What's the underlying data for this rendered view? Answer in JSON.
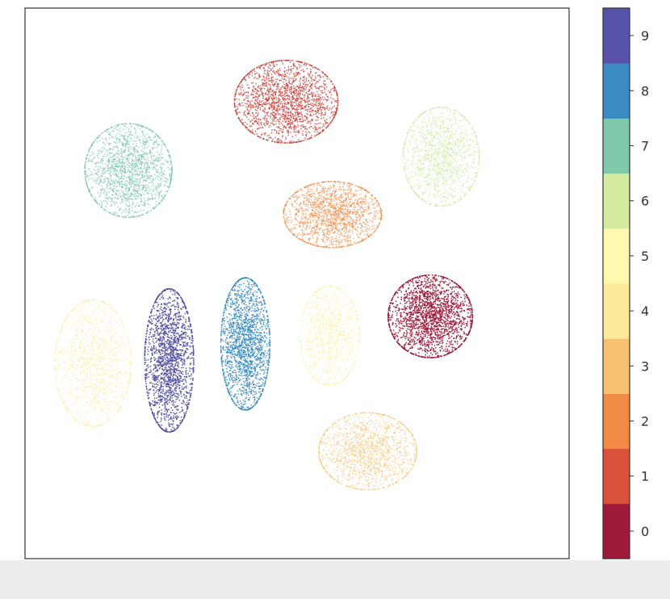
{
  "chart_data": {
    "type": "scatter",
    "title": "",
    "xlabel": "",
    "ylabel": "",
    "xlim": [
      -10,
      10
    ],
    "ylim": [
      -10,
      10
    ],
    "axes_ticks_visible": false,
    "grid": false,
    "legend": "colorbar-right",
    "colorbar": {
      "colormap": "Spectral",
      "ticks": [
        "0",
        "1",
        "2",
        "3",
        "4",
        "5",
        "6",
        "7",
        "8",
        "9"
      ],
      "colors": [
        "#9e1a3a",
        "#d9513a",
        "#f08a45",
        "#f6c272",
        "#fde99a",
        "#fef8b0",
        "#d5eca0",
        "#7fc8a9",
        "#3b8bc2",
        "#5753a8"
      ]
    },
    "clusters": [
      {
        "label": "0",
        "center": [
          4.9,
          -1.2
        ],
        "spread": [
          1.55,
          1.5
        ],
        "count": 2000,
        "color": "#9e1a3a",
        "opacity": 0.9
      },
      {
        "label": "1",
        "center": [
          -0.4,
          6.6
        ],
        "spread": [
          1.9,
          1.5
        ],
        "count": 1900,
        "color": "#c9403a",
        "opacity": 0.75
      },
      {
        "label": "2",
        "center": [
          1.3,
          2.5
        ],
        "spread": [
          1.8,
          1.2
        ],
        "count": 1700,
        "color": "#f08a45",
        "opacity": 0.6
      },
      {
        "label": "3",
        "center": [
          2.6,
          -6.1
        ],
        "spread": [
          1.8,
          1.4
        ],
        "count": 1500,
        "color": "#f6c272",
        "opacity": 0.55
      },
      {
        "label": "4",
        "center": [
          -7.5,
          -2.9
        ],
        "spread": [
          1.4,
          2.3
        ],
        "count": 1400,
        "color": "#fde99a",
        "opacity": 0.5
      },
      {
        "label": "5",
        "center": [
          1.2,
          -1.9
        ],
        "spread": [
          1.1,
          1.8
        ],
        "count": 1100,
        "color": "#fcef9c",
        "opacity": 0.5
      },
      {
        "label": "6",
        "center": [
          5.3,
          4.6
        ],
        "spread": [
          1.4,
          1.8
        ],
        "count": 1400,
        "color": "#cfe8a0",
        "opacity": 0.6
      },
      {
        "label": "7",
        "center": [
          -6.2,
          4.1
        ],
        "spread": [
          1.6,
          1.7
        ],
        "count": 1700,
        "color": "#6fbfa2",
        "opacity": 0.6
      },
      {
        "label": "8",
        "center": [
          -1.9,
          -2.2
        ],
        "spread": [
          0.9,
          2.4
        ],
        "count": 1800,
        "color": "#2f86c0",
        "opacity": 0.8
      },
      {
        "label": "9",
        "center": [
          -4.7,
          -2.8
        ],
        "spread": [
          0.9,
          2.6
        ],
        "count": 1900,
        "color": "#4b4aa0",
        "opacity": 0.85
      }
    ]
  }
}
